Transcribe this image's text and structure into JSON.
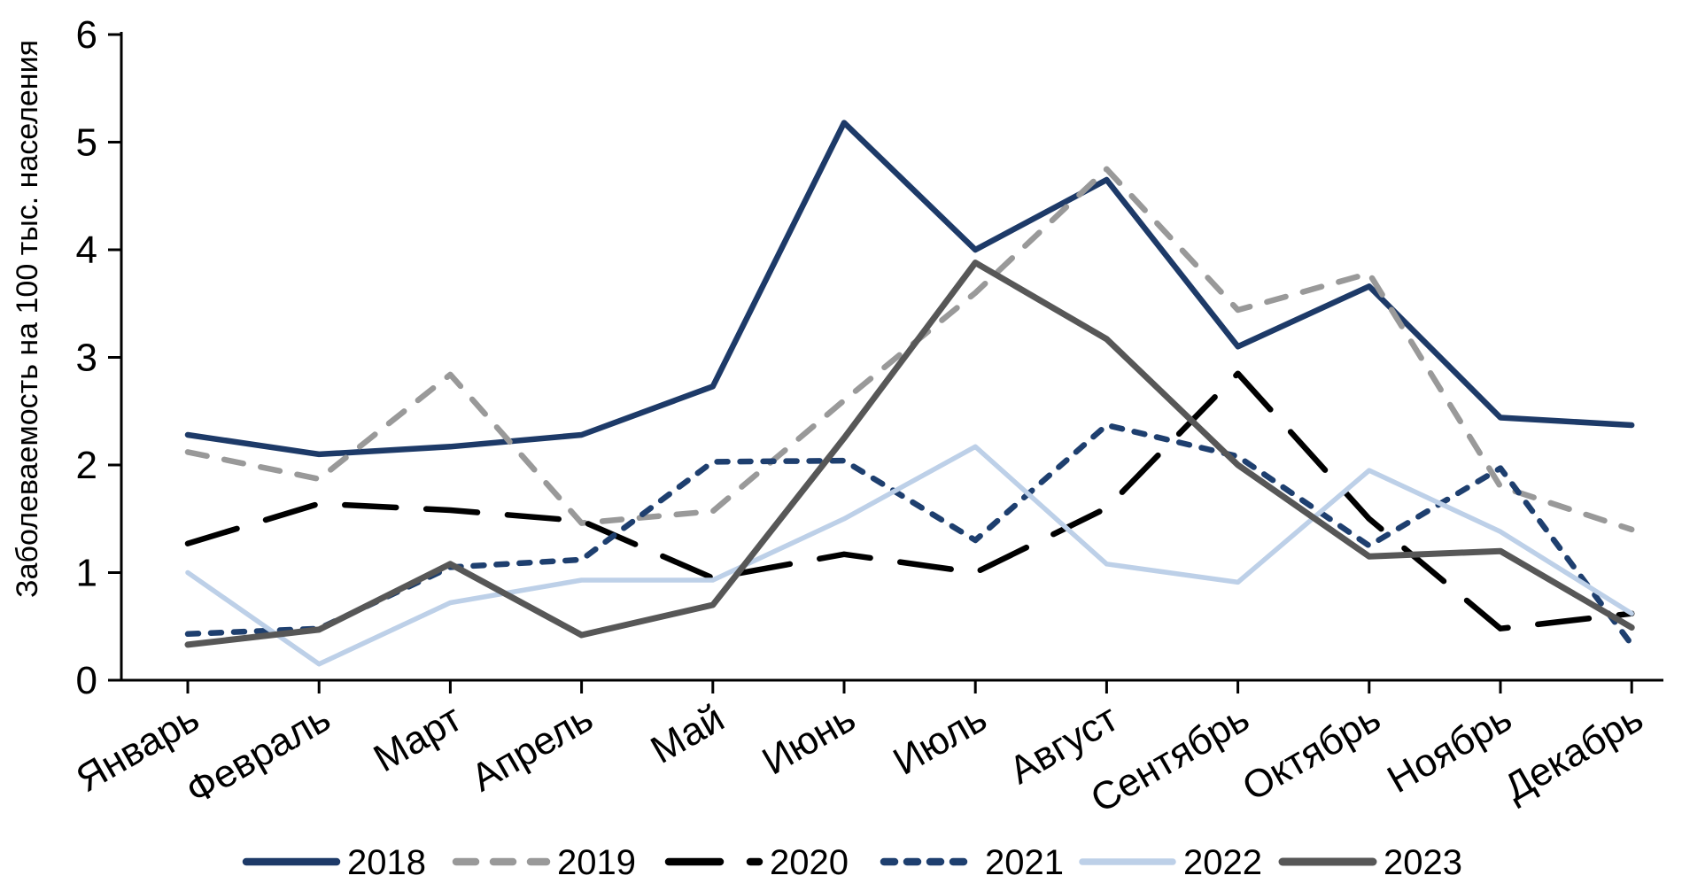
{
  "chart_data": {
    "type": "line",
    "title": "",
    "xlabel": "",
    "ylabel": "Заболеваемость на 100 тыс. населения",
    "ylim": [
      0,
      6
    ],
    "yticks": [
      0,
      1,
      2,
      3,
      4,
      5,
      6
    ],
    "grid": false,
    "legend_position": "bottom",
    "categories": [
      "Январь",
      "Февраль",
      "Март",
      "Апрель",
      "Май",
      "Июнь",
      "Июль",
      "Август",
      "Сентябрь",
      "Октябрь",
      "Ноябрь",
      "Декабрь"
    ],
    "series": [
      {
        "name": "2018",
        "color": "#1d3a68",
        "style": "solid",
        "width": 6.5,
        "values": [
          2.28,
          2.1,
          2.17,
          2.28,
          2.73,
          5.18,
          4.0,
          4.65,
          3.1,
          3.66,
          2.44,
          2.37
        ]
      },
      {
        "name": "2019",
        "color": "#999999",
        "style": "dashed",
        "width": 6.5,
        "values": [
          2.12,
          1.87,
          2.84,
          1.46,
          1.57,
          2.6,
          3.6,
          4.75,
          3.44,
          3.78,
          1.8,
          1.4
        ]
      },
      {
        "name": "2020",
        "color": "#000000",
        "style": "long-dash",
        "width": 6.5,
        "values": [
          1.27,
          1.64,
          1.58,
          1.48,
          0.95,
          1.17,
          1.0,
          1.6,
          2.85,
          1.5,
          0.48,
          0.62
        ]
      },
      {
        "name": "2021",
        "color": "#1e3f6f",
        "style": "short-dash",
        "width": 6.5,
        "values": [
          0.43,
          0.48,
          1.05,
          1.12,
          2.03,
          2.04,
          1.3,
          2.37,
          2.08,
          1.25,
          1.97,
          0.33
        ]
      },
      {
        "name": "2022",
        "color": "#bdd0e8",
        "style": "solid",
        "width": 5.5,
        "values": [
          1.0,
          0.15,
          0.72,
          0.93,
          0.93,
          1.5,
          2.17,
          1.08,
          0.91,
          1.95,
          1.38,
          0.62
        ]
      },
      {
        "name": "2023",
        "color": "#575757",
        "style": "solid",
        "width": 7.0,
        "values": [
          0.33,
          0.47,
          1.08,
          0.42,
          0.7,
          2.25,
          3.88,
          3.17,
          2.0,
          1.15,
          1.2,
          0.49
        ]
      }
    ]
  }
}
